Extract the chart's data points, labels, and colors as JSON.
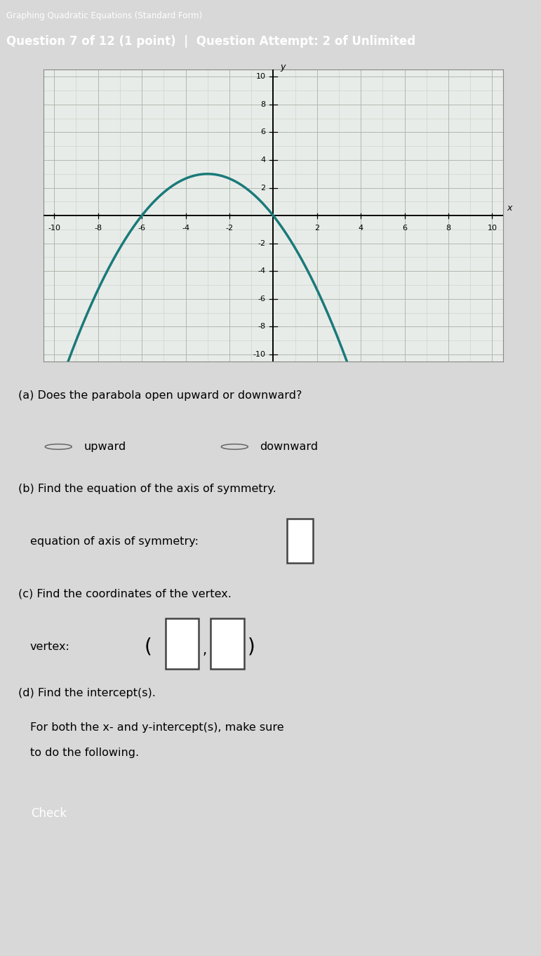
{
  "title_line1": "Graphing Quadratic Equations (Standard Form)",
  "title_line2": "Question 7 of 12 (1 point)  |  Question Attempt: 2 of Unlimited",
  "header_bg_color": "#3d7a50",
  "header_text_color": "#ffffff",
  "graph_xlim": [
    -10.5,
    10.5
  ],
  "graph_ylim": [
    -10.5,
    10.5
  ],
  "parabola_color": "#1a7a7a",
  "parabola_a": -0.3333,
  "parabola_b": -2.0,
  "parabola_c": 0.0,
  "part_a_text": "(a) Does the parabola open upward or downward?",
  "part_a_opt1": "upward",
  "part_a_opt2": "downward",
  "part_b_text": "(b) Find the equation of the axis of symmetry.",
  "part_b_label": "equation of axis of symmetry:",
  "part_c_text": "(c) Find the coordinates of the vertex.",
  "part_c_label": "vertex:",
  "part_d_text": "(d) Find the intercept(s).",
  "part_d_sub1": "For both the x- and y-intercept(s), make sure",
  "part_d_sub2": "to do the following.",
  "check_text": "Check",
  "bg_color": "#d8d8d8",
  "panel_bg": "#ffffff",
  "panel_border": "#aaaaaa",
  "graph_bg": "#e8ece8",
  "minor_grid_color": "#c8cec8",
  "major_grid_color": "#b0b8b0",
  "sidebar_white": "#f0f0f0",
  "sidebar_blue": "#1a3a6e",
  "tick_labels": [
    -10,
    -8,
    -6,
    -4,
    -2,
    2,
    4,
    6,
    8,
    10
  ],
  "axis_label_color": "#000000",
  "font_size_body": 11.5,
  "font_size_small": 8
}
